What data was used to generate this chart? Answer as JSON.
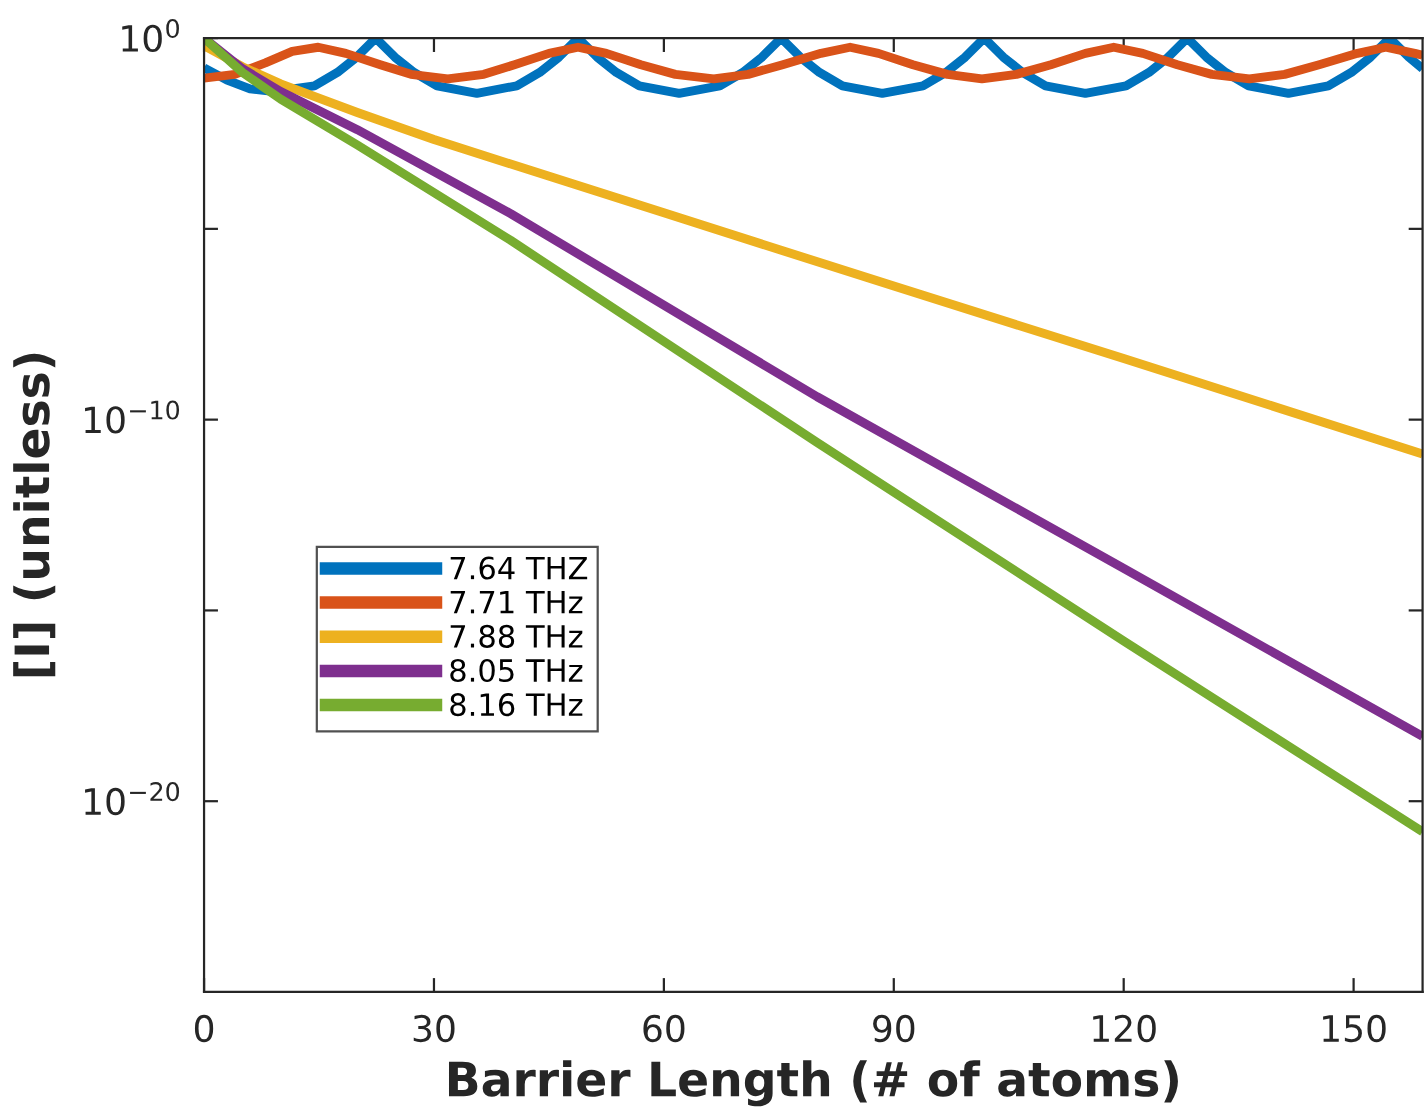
{
  "chart_data": {
    "type": "line",
    "xlabel": "Barrier Length (# of atoms)",
    "ylabel": "[I] (unitless)",
    "log": "y",
    "xlim": [
      0,
      159
    ],
    "xticks": [
      0,
      30,
      60,
      90,
      120,
      150
    ],
    "ylim": [
      1e-25,
      1
    ],
    "yticks": [
      {
        "value": 1,
        "label": "10$^{0}$"
      },
      {
        "value": 1e-05,
        "label": null
      },
      {
        "value": 1e-10,
        "label": "10$^{−10}$"
      },
      {
        "value": 1e-15,
        "label": null
      },
      {
        "value": 1e-20,
        "label": "10$^{−20}$"
      }
    ],
    "grid": false,
    "legend": "left",
    "marker": "none",
    "line_style": "solid",
    "series": [
      {
        "name": "7.64 THZ",
        "color": "#0072bd",
        "x": [
          0,
          3,
          6,
          9.2,
          14.4,
          17.4,
          19.9,
          22.4,
          24.9,
          27.4,
          30.4,
          35.6,
          40.8,
          43.8,
          46.3,
          48.8,
          51.3,
          53.8,
          56.8,
          62.0,
          67.3,
          70.3,
          72.8,
          75.3,
          77.8,
          80.3,
          83.3,
          88.5,
          93.8,
          96.8,
          99.3,
          101.8,
          104.3,
          106.8,
          109.8,
          115.0,
          120.3,
          123.3,
          125.8,
          128.3,
          130.8,
          133.3,
          136.3,
          141.5,
          146.7,
          149.7,
          152.2,
          154.7,
          157.2,
          159
        ],
        "values": [
          0.166,
          0.0794,
          0.0468,
          0.0398,
          0.0562,
          0.126,
          0.316,
          1,
          0.316,
          0.126,
          0.0562,
          0.0355,
          0.0562,
          0.126,
          0.316,
          1,
          0.316,
          0.126,
          0.0562,
          0.0355,
          0.0562,
          0.126,
          0.316,
          1,
          0.316,
          0.126,
          0.0562,
          0.0355,
          0.0562,
          0.126,
          0.316,
          1,
          0.316,
          0.126,
          0.0562,
          0.0355,
          0.0562,
          0.126,
          0.316,
          1,
          0.316,
          0.126,
          0.0562,
          0.0355,
          0.0562,
          0.126,
          0.316,
          1,
          0.316,
          0.158
        ]
      },
      {
        "name": "7.71 THz",
        "color": "#d95319",
        "x": [
          0,
          4,
          8,
          11.5,
          14.9,
          18.5,
          23,
          27,
          31.8,
          36.5,
          40.5,
          45,
          48.8,
          52.5,
          57,
          61.5,
          66.5,
          71,
          75.5,
          80.5,
          84.3,
          88,
          92.5,
          97,
          101.5,
          106,
          110.5,
          115,
          118.7,
          122.5,
          127,
          131.5,
          136.4,
          141,
          145.5,
          150.5,
          154.2,
          158,
          159
        ],
        "values": [
          0.0891,
          0.112,
          0.224,
          0.447,
          0.575,
          0.398,
          0.2,
          0.112,
          0.0851,
          0.112,
          0.2,
          0.398,
          0.575,
          0.398,
          0.2,
          0.112,
          0.0851,
          0.112,
          0.2,
          0.398,
          0.575,
          0.398,
          0.2,
          0.112,
          0.0851,
          0.112,
          0.2,
          0.398,
          0.575,
          0.398,
          0.2,
          0.112,
          0.0851,
          0.112,
          0.2,
          0.398,
          0.575,
          0.398,
          0.355
        ]
      },
      {
        "name": "7.88 THz",
        "color": "#edb120",
        "x": [
          0,
          5,
          10,
          20,
          30,
          60,
          90,
          120,
          159
        ],
        "values": [
          0.631,
          0.178,
          0.0631,
          0.0112,
          0.00219,
          2.63e-05,
          3.16e-07,
          3.98e-09,
          1.26e-11
        ]
      },
      {
        "name": "8.05 THz",
        "color": "#7e2f8e",
        "x": [
          0,
          5,
          10,
          20,
          40,
          80,
          120,
          159
        ],
        "values": [
          1,
          0.158,
          0.0398,
          0.00398,
          2.51e-05,
          3.98e-10,
          1.26e-14,
          5.01e-19
        ]
      },
      {
        "name": "8.16 THz",
        "color": "#77ac30",
        "x": [
          0,
          5,
          10,
          20,
          40,
          80,
          120,
          159
        ],
        "values": [
          1,
          0.126,
          0.0251,
          0.00158,
          5.01e-06,
          2.51e-11,
          1.58e-16,
          1.58e-21
        ]
      }
    ]
  }
}
